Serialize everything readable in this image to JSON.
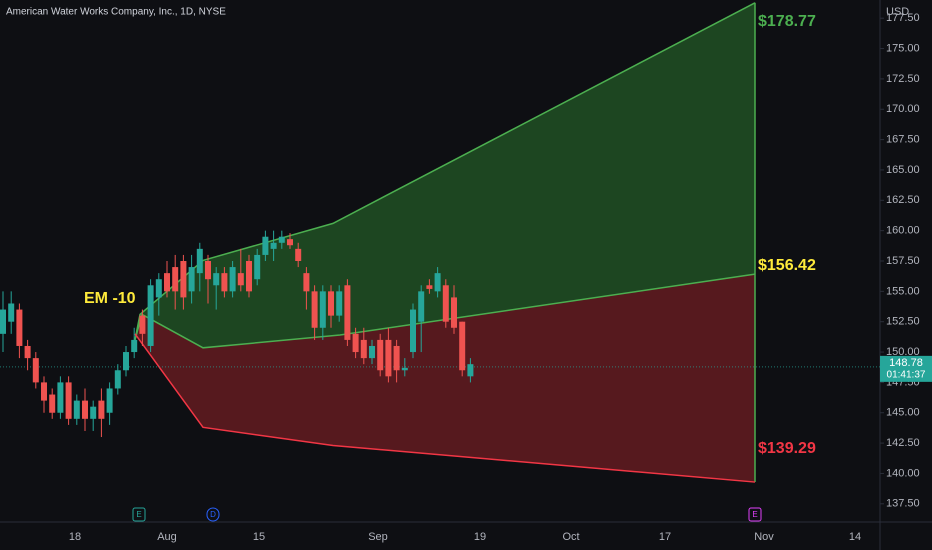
{
  "chart_data": {
    "type": "candlestick",
    "title": "American Water Works Company, Inc., 1D, NYSE",
    "currency": "USD",
    "ohlc": [
      [
        151.5,
        155,
        150,
        153.5
      ],
      [
        152.5,
        155,
        151.5,
        154
      ],
      [
        153.5,
        154,
        149.5,
        150.5
      ],
      [
        150.5,
        151,
        148.5,
        149.5
      ],
      [
        149.5,
        150,
        147,
        147.5
      ],
      [
        147.5,
        148,
        145,
        146
      ],
      [
        146.5,
        147,
        144.5,
        145
      ],
      [
        145,
        148,
        144.5,
        147.5
      ],
      [
        147.5,
        148,
        144,
        144.5
      ],
      [
        144.5,
        146.5,
        144,
        146
      ],
      [
        146,
        147,
        143.5,
        144.5
      ],
      [
        144.5,
        146,
        143.5,
        145.5
      ],
      [
        146,
        147,
        143,
        144.5
      ],
      [
        145,
        147.5,
        144,
        147
      ],
      [
        147,
        149,
        146.5,
        148.5
      ],
      [
        148.5,
        150.5,
        148,
        150
      ],
      [
        150,
        152,
        149.5,
        151
      ],
      [
        153,
        153.5,
        150.5,
        151.5
      ],
      [
        150.5,
        156,
        150,
        155.5
      ],
      [
        154.5,
        156.5,
        153,
        156
      ],
      [
        156.5,
        157.5,
        154.5,
        155
      ],
      [
        157,
        158,
        153.5,
        155
      ],
      [
        157.5,
        158,
        153.5,
        154.5
      ],
      [
        155,
        158,
        154,
        157
      ],
      [
        156.5,
        159,
        155,
        158.5
      ],
      [
        157.5,
        158,
        154,
        156
      ],
      [
        155.5,
        157,
        153.5,
        156.5
      ],
      [
        156.5,
        157,
        154.5,
        155
      ],
      [
        155,
        157.5,
        154.5,
        157
      ],
      [
        156.5,
        158.5,
        155,
        155.5
      ],
      [
        157.5,
        158,
        154.5,
        155
      ],
      [
        156,
        158.5,
        155.5,
        158
      ],
      [
        158,
        160,
        157.5,
        159.5
      ],
      [
        158.5,
        160,
        157.5,
        159
      ],
      [
        159,
        160,
        158.5,
        159.5
      ],
      [
        159.3,
        159.8,
        158.5,
        158.8
      ],
      [
        158.5,
        159,
        157,
        157.5
      ],
      [
        156.5,
        157,
        153.5,
        155
      ],
      [
        155,
        155.5,
        151,
        152
      ],
      [
        152,
        155.5,
        151,
        155
      ],
      [
        155,
        155.5,
        152,
        153
      ],
      [
        153,
        155.5,
        152.5,
        155
      ],
      [
        155.5,
        156,
        150.5,
        151
      ],
      [
        151.5,
        152,
        149.5,
        150
      ],
      [
        151,
        152,
        149,
        149.5
      ],
      [
        149.5,
        151,
        149,
        150.5
      ],
      [
        151,
        151.5,
        148,
        148.5
      ],
      [
        151,
        152,
        147.5,
        148
      ],
      [
        150.5,
        151,
        147.5,
        148.5
      ],
      [
        148.5,
        149.5,
        148,
        148.7
      ],
      [
        150,
        154,
        149.5,
        153.5
      ],
      [
        152.5,
        155.5,
        150,
        155
      ],
      [
        155.5,
        156,
        154.8,
        155.2
      ],
      [
        155,
        157,
        154.5,
        156.5
      ],
      [
        155.5,
        156,
        152,
        152.5
      ],
      [
        154.5,
        155.5,
        151.5,
        152
      ],
      [
        152.5,
        152.5,
        148,
        148.5
      ],
      [
        148,
        149.5,
        147.5,
        149
      ]
    ],
    "up_color": "#26a69a",
    "down_color": "#ef5350",
    "em_label": "EM -10",
    "em_upper": [
      151.0,
      153.1,
      157.55,
      160.6
    ],
    "em_middle": [
      151.0,
      153.1,
      150.35,
      151.4
    ],
    "em_lower": [
      151.5,
      143.8,
      142.3
    ],
    "em_levels": {
      "values": [
        178.77,
        156.42,
        139.29
      ],
      "value_labels": [
        "$178.77",
        "$156.42",
        "$139.29"
      ],
      "colors": [
        "#4caf50",
        "#ffeb3b",
        "#f23645"
      ]
    },
    "last_price": 148.78,
    "countdown": "01:41:37",
    "ylim": [
      136.0,
      179.0
    ],
    "yticks": [
      {
        "value": 137.5,
        "label": "137.50"
      },
      {
        "value": 140,
        "label": "140.00"
      },
      {
        "value": 142.5,
        "label": "142.50"
      },
      {
        "value": 145,
        "label": "145.00"
      },
      {
        "value": 147.5,
        "label": "147.50"
      },
      {
        "value": 150,
        "label": "150.00"
      },
      {
        "value": 152.5,
        "label": "152.50"
      },
      {
        "value": 155,
        "label": "155.00"
      },
      {
        "value": 157.5,
        "label": "157.50"
      },
      {
        "value": 160,
        "label": "160.00"
      },
      {
        "value": 162.5,
        "label": "162.50"
      },
      {
        "value": 165,
        "label": "165.00"
      },
      {
        "value": 167.5,
        "label": "167.50"
      },
      {
        "value": 170,
        "label": "170.00"
      },
      {
        "value": 172.5,
        "label": "172.50"
      },
      {
        "value": 175,
        "label": "175.00"
      },
      {
        "value": 177.5,
        "label": "177.50"
      }
    ],
    "xlabels": [
      "18",
      "Aug",
      "15",
      "Sep",
      "19",
      "Oct",
      "17",
      "Nov",
      "14"
    ],
    "events": [
      "E",
      "D",
      "E"
    ]
  }
}
